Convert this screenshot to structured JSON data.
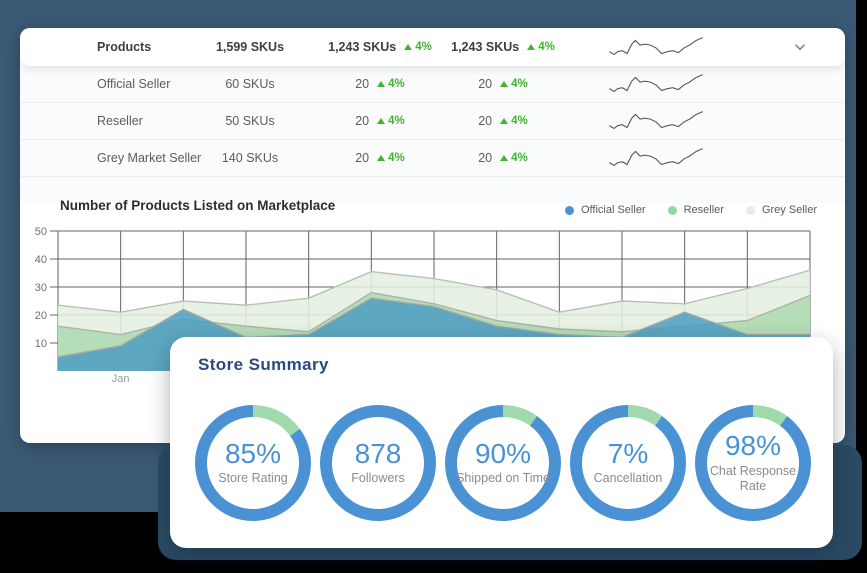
{
  "colors": {
    "background_teal": "#3B5A76",
    "underlay_dark_teal": "#2B4A63",
    "accent_green": "#3EB52C",
    "donut_blue": "#4A92D4",
    "donut_green": "#A0D9AB",
    "sparkline_gray": "#5a5a5a",
    "gridline_gray": "#636363"
  },
  "table": {
    "header": {
      "name": "Products",
      "total": "1,599 SKUs",
      "col1": {
        "value": "1,243 SKUs",
        "delta": "4%"
      },
      "col2": {
        "value": "1,243 SKUs",
        "delta": "4%"
      },
      "chevron_icon": "chevron-down"
    },
    "rows": [
      {
        "name": "Official Seller",
        "sku": "60 SKUs",
        "col1": {
          "value": "20",
          "delta": "4%"
        },
        "col2": {
          "value": "20",
          "delta": "4%"
        }
      },
      {
        "name": "Reseller",
        "sku": "50 SKUs",
        "col1": {
          "value": "20",
          "delta": "4%"
        },
        "col2": {
          "value": "20",
          "delta": "4%"
        }
      },
      {
        "name": "Grey Market Seller",
        "sku": "140 SKUs",
        "col1": {
          "value": "20",
          "delta": "4%"
        },
        "col2": {
          "value": "20",
          "delta": "4%"
        }
      }
    ]
  },
  "sparkline": {
    "points": [
      [
        0,
        20
      ],
      [
        5,
        23
      ],
      [
        9,
        20
      ],
      [
        14,
        19
      ],
      [
        19,
        22
      ],
      [
        24,
        12
      ],
      [
        28,
        8
      ],
      [
        33,
        13
      ],
      [
        38,
        12
      ],
      [
        44,
        13
      ],
      [
        50,
        16
      ],
      [
        56,
        22
      ],
      [
        62,
        20
      ],
      [
        68,
        19
      ],
      [
        74,
        21
      ],
      [
        80,
        16
      ],
      [
        86,
        13
      ],
      [
        93,
        8
      ],
      [
        100,
        5
      ]
    ]
  },
  "chart": {
    "title": "Number of Products Listed on Marketplace",
    "legend": [
      {
        "label": "Official Seller",
        "color": "#4A90D2"
      },
      {
        "label": "Reseller",
        "color": "#93D6A4"
      },
      {
        "label": "Grey Seller",
        "color": "#E4EFE0"
      }
    ]
  },
  "chart_data": {
    "type": "area",
    "title": "Number of Products Listed on Marketplace",
    "ylim": [
      0,
      50
    ],
    "yticks": [
      10,
      20,
      30,
      40,
      50
    ],
    "grid": true,
    "legend_position": "top-right",
    "x_visible_labels": [
      {
        "label": "Jan",
        "index": 1
      }
    ],
    "categories": [
      "",
      "Jan",
      "",
      "",
      "",
      "",
      "",
      "",
      "",
      "",
      "",
      "",
      ""
    ],
    "series": [
      {
        "name": "Grey Seller",
        "fill": "#E4EFE0",
        "opacity": 0.88,
        "stroke": "#b7c0b6",
        "values": [
          23.5,
          21,
          25,
          23.5,
          26,
          35.5,
          33,
          29,
          21,
          25,
          24,
          29.5,
          36
        ]
      },
      {
        "name": "Reseller",
        "fill": "#A9D8AB",
        "opacity": 0.8,
        "stroke": "#aab4aa",
        "values": [
          16,
          13,
          18.5,
          16,
          14,
          28,
          24,
          18,
          15,
          14,
          16,
          18,
          27
        ]
      },
      {
        "name": "Official Seller",
        "fill": "#4E9DC3",
        "opacity": 0.85,
        "stroke": "#a3a8a5",
        "values": [
          5,
          9,
          22,
          12,
          13,
          26,
          23,
          16,
          13,
          12,
          21,
          13,
          13
        ]
      }
    ]
  },
  "store_summary": {
    "title": "Store Summary",
    "ring_blue": "#4A92D4",
    "ring_green": "#A0D9AB",
    "metrics": [
      {
        "value": "85%",
        "label": "Store Rating",
        "green_pct": 15
      },
      {
        "value": "878",
        "label": "Followers",
        "green_pct": 0
      },
      {
        "value": "90%",
        "label": "Shipped on Time",
        "green_pct": 10
      },
      {
        "value": "7%",
        "label": "Cancellation",
        "green_pct": 10
      },
      {
        "value": "98%",
        "label": "Chat Response Rate",
        "green_pct": 10
      }
    ]
  }
}
